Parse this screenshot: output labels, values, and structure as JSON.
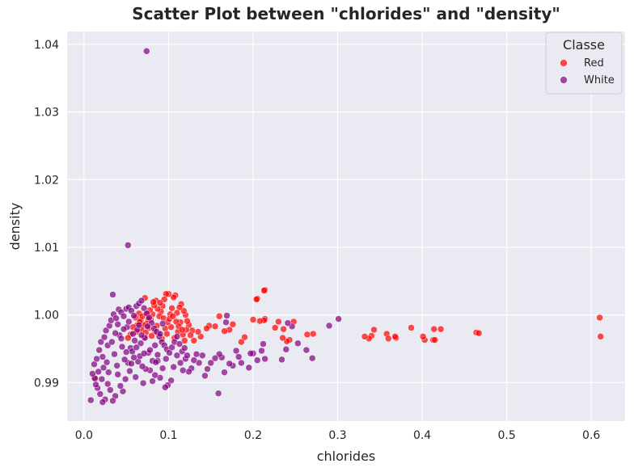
{
  "chart_data": {
    "type": "scatter",
    "title": "Scatter Plot between \"chlorides\" and \"density\"",
    "xlabel": "chlorides",
    "ylabel": "density",
    "xlim": [
      -0.02,
      0.64
    ],
    "ylim": [
      0.9843,
      1.0419
    ],
    "xticks": [
      0.0,
      0.1,
      0.2,
      0.3,
      0.4,
      0.5,
      0.6
    ],
    "xtick_labels": [
      "0.0",
      "0.1",
      "0.2",
      "0.3",
      "0.4",
      "0.5",
      "0.6"
    ],
    "yticks": [
      0.99,
      1.0,
      1.01,
      1.02,
      1.03,
      1.04
    ],
    "ytick_labels": [
      "0.99",
      "1.00",
      "1.01",
      "1.02",
      "1.03",
      "1.04"
    ],
    "grid": true,
    "legend": {
      "title": "Classe",
      "position": "top-right"
    },
    "series": [
      {
        "name": "Red",
        "color": "#ff0000",
        "points": [
          [
            0.61,
            0.9996
          ],
          [
            0.611,
            0.9968
          ],
          [
            0.464,
            0.9974
          ],
          [
            0.467,
            0.9973
          ],
          [
            0.414,
            0.9979
          ],
          [
            0.422,
            0.9979
          ],
          [
            0.413,
            0.9963
          ],
          [
            0.415,
            0.9963
          ],
          [
            0.403,
            0.9963
          ],
          [
            0.401,
            0.9968
          ],
          [
            0.387,
            0.9981
          ],
          [
            0.369,
            0.9966
          ],
          [
            0.368,
            0.9968
          ],
          [
            0.358,
            0.9972
          ],
          [
            0.36,
            0.9965
          ],
          [
            0.343,
            0.9978
          ],
          [
            0.34,
            0.9969
          ],
          [
            0.337,
            0.9965
          ],
          [
            0.332,
            0.9968
          ],
          [
            0.271,
            0.9972
          ],
          [
            0.264,
            0.9971
          ],
          [
            0.248,
            0.999
          ],
          [
            0.236,
            0.9979
          ],
          [
            0.243,
            0.9963
          ],
          [
            0.24,
            0.9961
          ],
          [
            0.226,
            0.9981
          ],
          [
            0.23,
            0.999
          ],
          [
            0.235,
            0.9966
          ],
          [
            0.214,
            1.0037
          ],
          [
            0.213,
            1.0036
          ],
          [
            0.205,
            1.0024
          ],
          [
            0.204,
            1.0023
          ],
          [
            0.214,
            0.9994
          ],
          [
            0.213,
            0.9992
          ],
          [
            0.208,
            0.9991
          ],
          [
            0.2,
            0.9993
          ],
          [
            0.19,
            0.9967
          ],
          [
            0.186,
            0.996
          ],
          [
            0.176,
            0.9986
          ],
          [
            0.172,
            0.9978
          ],
          [
            0.166,
            0.9976
          ],
          [
            0.16,
            0.9998
          ],
          [
            0.155,
            0.9983
          ],
          [
            0.148,
            0.9984
          ],
          [
            0.145,
            0.998
          ],
          [
            0.138,
            0.9968
          ],
          [
            0.135,
            0.9975
          ],
          [
            0.128,
            0.9977
          ],
          [
            0.124,
            0.9985
          ],
          [
            0.122,
            0.9991
          ],
          [
            0.12,
            1.0
          ],
          [
            0.118,
            1.0006
          ],
          [
            0.115,
            1.0016
          ],
          [
            0.113,
            1.0011
          ],
          [
            0.11,
            1.0003
          ],
          [
            0.108,
            1.0029
          ],
          [
            0.106,
            1.0026
          ],
          [
            0.104,
            1.001
          ],
          [
            0.102,
            1.0001
          ],
          [
            0.1,
            1.0031
          ],
          [
            0.097,
            1.0031
          ],
          [
            0.095,
            1.0023
          ],
          [
            0.093,
            1.0013
          ],
          [
            0.091,
            1.0005
          ],
          [
            0.089,
            0.9998
          ],
          [
            0.087,
            1.0009
          ],
          [
            0.085,
            1.0021
          ],
          [
            0.083,
            1.0014
          ],
          [
            0.081,
            1.0001
          ],
          [
            0.079,
            0.9993
          ],
          [
            0.078,
            1.0007
          ],
          [
            0.076,
            0.9994
          ],
          [
            0.074,
            0.9987
          ],
          [
            0.072,
            1.0025
          ],
          [
            0.07,
            0.9985
          ],
          [
            0.068,
            0.9978
          ],
          [
            0.067,
            0.9992
          ],
          [
            0.065,
            1.0002
          ],
          [
            0.063,
            0.9985
          ],
          [
            0.061,
            0.9996
          ],
          [
            0.096,
            0.998
          ],
          [
            0.098,
            0.9972
          ],
          [
            0.103,
            0.9982
          ],
          [
            0.107,
            0.9966
          ],
          [
            0.111,
            0.9975
          ],
          [
            0.114,
            0.9989
          ],
          [
            0.117,
            0.9971
          ],
          [
            0.119,
            0.9962
          ],
          [
            0.121,
            0.9978
          ],
          [
            0.126,
            0.997
          ],
          [
            0.13,
            0.9962
          ],
          [
            0.092,
            0.9965
          ],
          [
            0.088,
            0.9972
          ],
          [
            0.086,
            0.9984
          ],
          [
            0.084,
            0.9976
          ],
          [
            0.08,
            0.9969
          ],
          [
            0.077,
            0.9981
          ],
          [
            0.073,
            0.9974
          ],
          [
            0.071,
            0.9967
          ],
          [
            0.069,
            0.9998
          ],
          [
            0.094,
            0.9995
          ],
          [
            0.099,
            0.9989
          ],
          [
            0.101,
            0.9994
          ],
          [
            0.105,
            0.9998
          ],
          [
            0.109,
            0.999
          ],
          [
            0.112,
            0.9983
          ],
          [
            0.116,
            0.9978
          ],
          [
            0.09,
            1.0018
          ],
          [
            0.082,
            1.0019
          ],
          [
            0.075,
            1.0003
          ],
          [
            0.066,
            0.999
          ],
          [
            0.062,
            0.9975
          ],
          [
            0.058,
            0.9982
          ],
          [
            0.055,
            0.9971
          ],
          [
            0.052,
            0.9966
          ],
          [
            0.012,
            0.9907
          ]
        ]
      },
      {
        "name": "White",
        "color": "#800080",
        "points": [
          [
            0.074,
            1.039
          ],
          [
            0.052,
            1.0103
          ],
          [
            0.034,
            1.003
          ],
          [
            0.301,
            0.9994
          ],
          [
            0.29,
            0.9984
          ],
          [
            0.27,
            0.9936
          ],
          [
            0.263,
            0.9948
          ],
          [
            0.253,
            0.9958
          ],
          [
            0.246,
            0.9983
          ],
          [
            0.241,
            0.9988
          ],
          [
            0.239,
            0.9949
          ],
          [
            0.234,
            0.9934
          ],
          [
            0.214,
            0.9935
          ],
          [
            0.212,
            0.9957
          ],
          [
            0.21,
            0.9947
          ],
          [
            0.205,
            0.9933
          ],
          [
            0.2,
            0.9943
          ],
          [
            0.197,
            0.9943
          ],
          [
            0.195,
            0.9922
          ],
          [
            0.186,
            0.9929
          ],
          [
            0.183,
            0.9938
          ],
          [
            0.18,
            0.9947
          ],
          [
            0.176,
            0.9925
          ],
          [
            0.172,
            0.9928
          ],
          [
            0.169,
            0.9999
          ],
          [
            0.168,
            0.9989
          ],
          [
            0.166,
            0.9915
          ],
          [
            0.163,
            0.9937
          ],
          [
            0.16,
            0.9942
          ],
          [
            0.159,
            0.9884
          ],
          [
            0.155,
            0.9936
          ],
          [
            0.15,
            0.9929
          ],
          [
            0.146,
            0.992
          ],
          [
            0.143,
            0.991
          ],
          [
            0.14,
            0.994
          ],
          [
            0.136,
            0.9929
          ],
          [
            0.133,
            0.9942
          ],
          [
            0.13,
            0.9933
          ],
          [
            0.127,
            0.9921
          ],
          [
            0.124,
            0.9916
          ],
          [
            0.12,
            0.9935
          ],
          [
            0.117,
            0.9918
          ],
          [
            0.114,
            0.9929
          ],
          [
            0.11,
            0.994
          ],
          [
            0.106,
            0.9923
          ],
          [
            0.103,
            0.9903
          ],
          [
            0.099,
            0.9896
          ],
          [
            0.096,
            0.9893
          ],
          [
            0.093,
            0.9921
          ],
          [
            0.09,
            0.9907
          ],
          [
            0.087,
            0.9932
          ],
          [
            0.084,
            0.9911
          ],
          [
            0.081,
            0.9902
          ],
          [
            0.078,
            0.9918
          ],
          [
            0.076,
            0.9944
          ],
          [
            0.073,
            0.992
          ],
          [
            0.07,
            0.9899
          ],
          [
            0.067,
            0.9958
          ],
          [
            0.064,
            0.9931
          ],
          [
            0.061,
            0.9908
          ],
          [
            0.058,
            0.9972
          ],
          [
            0.055,
            0.9951
          ],
          [
            0.052,
            0.9929
          ],
          [
            0.049,
            0.9905
          ],
          [
            0.046,
            0.9887
          ],
          [
            0.043,
            0.9895
          ],
          [
            0.04,
            0.9912
          ],
          [
            0.037,
            0.988
          ],
          [
            0.034,
            0.9873
          ],
          [
            0.031,
            0.9889
          ],
          [
            0.028,
            0.9898
          ],
          [
            0.025,
            0.9875
          ],
          [
            0.022,
            0.9871
          ],
          [
            0.019,
            0.9883
          ],
          [
            0.016,
            0.9892
          ],
          [
            0.013,
            0.9906
          ],
          [
            0.01,
            0.9913
          ],
          [
            0.008,
            0.9874
          ],
          [
            0.012,
            0.9927
          ],
          [
            0.015,
            0.9935
          ],
          [
            0.018,
            0.9948
          ],
          [
            0.02,
            0.996
          ],
          [
            0.022,
            0.9938
          ],
          [
            0.024,
            0.9967
          ],
          [
            0.026,
            0.9977
          ],
          [
            0.028,
            0.9955
          ],
          [
            0.03,
            0.9984
          ],
          [
            0.032,
            0.9992
          ],
          [
            0.035,
            1.0001
          ],
          [
            0.038,
            0.9995
          ],
          [
            0.041,
            1.0008
          ],
          [
            0.044,
            1.0004
          ],
          [
            0.047,
            0.9998
          ],
          [
            0.05,
            1.0009
          ],
          [
            0.053,
            1.0011
          ],
          [
            0.056,
            1.0006
          ],
          [
            0.059,
            0.9999
          ],
          [
            0.062,
            1.0013
          ],
          [
            0.065,
            1.0017
          ],
          [
            0.068,
            1.0021
          ],
          [
            0.071,
            1.001
          ],
          [
            0.074,
            1.0002
          ],
          [
            0.077,
            0.9996
          ],
          [
            0.08,
            0.9988
          ],
          [
            0.083,
            0.998
          ],
          [
            0.086,
            0.9975
          ],
          [
            0.089,
            0.9968
          ],
          [
            0.092,
            0.996
          ],
          [
            0.095,
            0.9955
          ],
          [
            0.098,
            0.9949
          ],
          [
            0.101,
            0.9944
          ],
          [
            0.104,
            0.9952
          ],
          [
            0.107,
            0.996
          ],
          [
            0.11,
            0.9968
          ],
          [
            0.113,
            0.9957
          ],
          [
            0.116,
            0.9946
          ],
          [
            0.119,
            0.9951
          ],
          [
            0.122,
            0.994
          ],
          [
            0.033,
            0.996
          ],
          [
            0.036,
            0.9942
          ],
          [
            0.039,
            0.9925
          ],
          [
            0.042,
            0.997
          ],
          [
            0.045,
            0.9953
          ],
          [
            0.048,
            0.9934
          ],
          [
            0.051,
            0.9982
          ],
          [
            0.054,
            0.9917
          ],
          [
            0.057,
            0.9946
          ],
          [
            0.06,
            0.9962
          ],
          [
            0.063,
            0.9978
          ],
          [
            0.066,
            0.9939
          ],
          [
            0.069,
            0.9924
          ],
          [
            0.072,
            0.9966
          ],
          [
            0.075,
            0.9983
          ],
          [
            0.078,
            0.9948
          ],
          [
            0.081,
            0.9932
          ],
          [
            0.084,
            0.9955
          ],
          [
            0.087,
            0.9941
          ],
          [
            0.09,
            0.9972
          ],
          [
            0.093,
            0.9987
          ],
          [
            0.029,
            0.9915
          ],
          [
            0.027,
            0.993
          ],
          [
            0.023,
            0.9922
          ],
          [
            0.021,
            0.9905
          ],
          [
            0.017,
            0.9916
          ],
          [
            0.014,
            0.9897
          ],
          [
            0.044,
            0.9965
          ],
          [
            0.047,
            0.9979
          ],
          [
            0.04,
            0.9986
          ],
          [
            0.037,
            0.9973
          ],
          [
            0.05,
            0.9945
          ],
          [
            0.056,
            0.9928
          ],
          [
            0.053,
            0.999
          ],
          [
            0.059,
            0.9937
          ],
          [
            0.062,
            0.9952
          ],
          [
            0.065,
            0.9985
          ],
          [
            0.068,
            0.997
          ],
          [
            0.071,
            0.9943
          ],
          [
            0.085,
            0.993
          ],
          [
            0.097,
            0.9935
          ]
        ]
      }
    ]
  }
}
